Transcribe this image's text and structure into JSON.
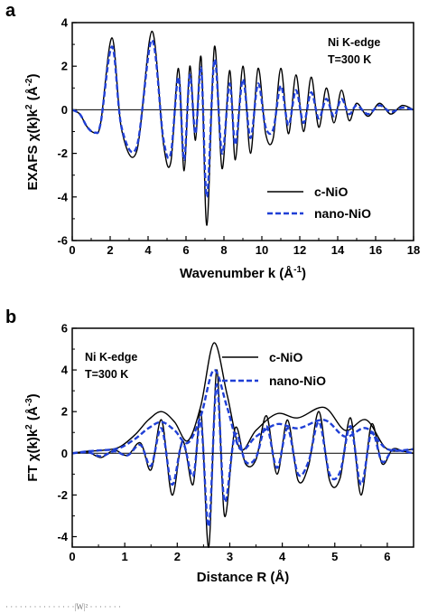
{
  "chart_data": [
    {
      "panel": "a",
      "type": "line",
      "xlabel": "Wavenumber k (Å",
      "xlabel_sup": "-1",
      "xlabel_end": ")",
      "ylabel": "EXAFS χ(k)k",
      "ylabel_sup": "2",
      "ylabel_mid": " (Å",
      "ylabel_sup2": "-2",
      "ylabel_end": ")",
      "xlim": [
        0,
        18
      ],
      "ylim": [
        -6,
        4
      ],
      "xticks": [
        0,
        2,
        4,
        6,
        8,
        10,
        12,
        14,
        16,
        18
      ],
      "yticks": [
        -6,
        -4,
        -2,
        0,
        2,
        4
      ],
      "annotation": [
        "Ni K-edge",
        "T=300 K"
      ],
      "legend_position": "lower-right",
      "series": [
        {
          "name": "c-NiO",
          "color": "#000000",
          "style": "solid",
          "x": [
            0.0,
            0.4,
            0.8,
            1.2,
            1.5,
            2.1,
            2.6,
            3.4,
            4.2,
            4.8,
            5.2,
            5.6,
            5.9,
            6.2,
            6.5,
            6.8,
            7.1,
            7.5,
            7.9,
            8.3,
            8.6,
            9.0,
            9.4,
            9.8,
            10.2,
            10.6,
            11.0,
            11.4,
            11.8,
            12.2,
            12.6,
            13.0,
            13.4,
            13.8,
            14.2,
            14.6,
            15.0,
            15.6,
            16.2,
            16.8,
            17.4,
            18.0
          ],
          "y": [
            0.0,
            -0.2,
            -0.8,
            -1.05,
            -0.6,
            3.3,
            -0.9,
            -1.9,
            3.6,
            -1.5,
            -2.4,
            1.9,
            -2.8,
            2.0,
            -1.4,
            2.4,
            -5.3,
            2.9,
            -2.7,
            1.8,
            -2.3,
            2.0,
            -2.0,
            1.9,
            -1.1,
            -1.3,
            1.9,
            -1.1,
            1.6,
            -1.0,
            1.5,
            -0.8,
            1.0,
            -0.6,
            0.9,
            -0.5,
            0.3,
            -0.3,
            0.3,
            -0.2,
            0.2,
            0.0
          ]
        },
        {
          "name": "nano-NiO",
          "color": "#1f3fd6",
          "style": "dashed",
          "x": [
            0.0,
            0.4,
            0.8,
            1.2,
            1.5,
            2.1,
            2.6,
            3.4,
            4.2,
            4.8,
            5.2,
            5.6,
            5.9,
            6.2,
            6.5,
            6.8,
            7.1,
            7.5,
            7.9,
            8.3,
            8.6,
            9.0,
            9.4,
            9.8,
            10.2,
            10.6,
            11.0,
            11.4,
            11.8,
            12.2,
            12.6,
            13.0,
            13.4,
            13.8,
            14.2,
            14.6,
            15.0,
            15.6,
            16.2,
            16.8,
            17.4,
            18.0
          ],
          "y": [
            0.0,
            -0.2,
            -0.8,
            -1.05,
            -0.6,
            2.9,
            -0.8,
            -1.7,
            3.2,
            -1.3,
            -2.0,
            1.5,
            -2.3,
            1.6,
            -1.1,
            1.9,
            -4.0,
            2.3,
            -2.0,
            1.2,
            -1.6,
            1.4,
            -1.3,
            1.2,
            -0.8,
            -0.9,
            1.1,
            -0.7,
            0.9,
            -0.6,
            0.8,
            -0.4,
            0.5,
            -0.3,
            0.5,
            -0.2,
            0.2,
            -0.2,
            0.2,
            -0.1,
            0.1,
            0.0
          ]
        }
      ]
    },
    {
      "panel": "b",
      "type": "line",
      "xlabel": "Distance R (Å)",
      "ylabel": "FT χ(k)k",
      "ylabel_sup": "2",
      "ylabel_mid": " (Å",
      "ylabel_sup2": "-3",
      "ylabel_end": ")",
      "xlim": [
        0,
        6.5
      ],
      "ylim": [
        -4.5,
        6
      ],
      "xticks": [
        0,
        1,
        2,
        3,
        4,
        5,
        6
      ],
      "yticks": [
        -4,
        -2,
        0,
        2,
        4,
        6
      ],
      "annotation": [
        "Ni K-edge",
        "T=300 K"
      ],
      "legend_position": "top-right",
      "series": [
        {
          "name": "c-NiO",
          "color": "#000000",
          "style": "solid",
          "parts": [
            {
              "x": [
                0.0,
                0.3,
                0.6,
                0.9,
                1.2,
                1.45,
                1.7,
                1.95,
                2.2,
                2.45,
                2.7,
                2.95,
                3.2,
                3.5,
                3.9,
                4.3,
                4.8,
                5.2,
                5.6,
                6.0,
                6.5
              ],
              "y": [
                0.0,
                0.1,
                0.15,
                0.3,
                0.9,
                1.6,
                2.0,
                1.5,
                0.6,
                2.3,
                5.3,
                2.8,
                0.2,
                1.1,
                1.9,
                1.7,
                2.2,
                1.1,
                1.6,
                0.2,
                0.2
              ]
            },
            {
              "x": [
                0.0,
                0.3,
                0.55,
                0.8,
                1.05,
                1.3,
                1.5,
                1.7,
                1.9,
                2.1,
                2.3,
                2.45,
                2.6,
                2.75,
                2.9,
                3.1,
                3.3,
                3.5,
                3.7,
                3.9,
                4.1,
                4.3,
                4.5,
                4.7,
                4.9,
                5.1,
                5.3,
                5.5,
                5.7,
                5.9,
                6.1,
                6.3,
                6.5
              ],
              "y": [
                0.0,
                0.05,
                -0.2,
                0.15,
                -0.1,
                0.5,
                -0.8,
                1.6,
                -2.0,
                0.6,
                -1.5,
                2.0,
                -4.5,
                4.0,
                -3.0,
                1.2,
                -0.5,
                -0.3,
                1.8,
                -1.0,
                1.6,
                -1.3,
                -0.6,
                2.0,
                -1.3,
                -1.2,
                1.7,
                -2.0,
                1.4,
                -0.5,
                0.2,
                0.1,
                0.0
              ]
            }
          ]
        },
        {
          "name": "nano-NiO",
          "color": "#1f3fd6",
          "style": "dashed",
          "parts": [
            {
              "x": [
                0.0,
                0.3,
                0.6,
                0.9,
                1.2,
                1.45,
                1.7,
                1.95,
                2.2,
                2.45,
                2.7,
                2.95,
                3.2,
                3.5,
                3.9,
                4.3,
                4.8,
                5.2,
                5.6,
                6.0,
                6.5
              ],
              "y": [
                0.0,
                0.1,
                0.15,
                0.25,
                0.7,
                1.2,
                1.5,
                1.1,
                0.5,
                1.8,
                4.0,
                2.2,
                0.2,
                0.8,
                1.4,
                1.2,
                1.6,
                0.8,
                1.2,
                0.2,
                0.2
              ]
            },
            {
              "x": [
                0.0,
                0.3,
                0.55,
                0.8,
                1.05,
                1.3,
                1.5,
                1.7,
                1.9,
                2.1,
                2.3,
                2.45,
                2.6,
                2.75,
                2.9,
                3.1,
                3.3,
                3.5,
                3.7,
                3.9,
                4.1,
                4.3,
                4.5,
                4.7,
                4.9,
                5.1,
                5.3,
                5.5,
                5.7,
                5.9,
                6.1,
                6.3,
                6.5
              ],
              "y": [
                0.0,
                0.05,
                -0.15,
                0.1,
                -0.1,
                0.4,
                -0.6,
                1.2,
                -1.5,
                0.5,
                -1.1,
                1.5,
                -3.5,
                3.3,
                -2.3,
                0.9,
                -0.4,
                -0.2,
                1.3,
                -0.7,
                1.2,
                -1.0,
                -0.4,
                1.5,
                -1.0,
                -0.9,
                1.3,
                -1.5,
                1.0,
                -0.4,
                0.15,
                0.1,
                0.0
              ]
            }
          ]
        }
      ]
    }
  ],
  "caption_fragment": "· · · · · · ·  · ·  ·  · ·   · · ·|W|² · · · · · · ·"
}
